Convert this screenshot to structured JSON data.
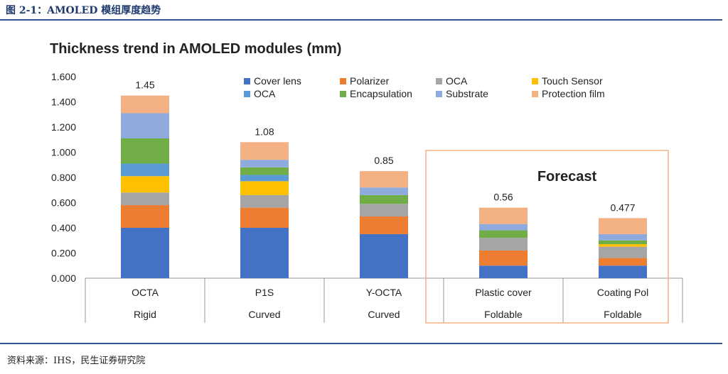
{
  "caption": "图 2-1：AMOLED 模组厚度趋势",
  "source": "资料来源：IHS，民生证券研究院",
  "chart_data": {
    "type": "bar",
    "stacked": true,
    "title": "Thickness trend in AMOLED modules (mm)",
    "categories": [
      "OCTA",
      "P1S",
      "Y-OCTA",
      "Plastic cover",
      "Coating Pol"
    ],
    "subcategories": [
      "Rigid",
      "Curved",
      "Curved",
      "Foldable",
      "Foldable"
    ],
    "totals": [
      1.45,
      1.08,
      0.85,
      0.56,
      0.477
    ],
    "total_labels": [
      "1.45",
      "1.08",
      "0.85",
      "0.56",
      "0.477"
    ],
    "ylim": [
      0,
      1.6
    ],
    "yticks": [
      "0.000",
      "0.200",
      "0.400",
      "0.600",
      "0.800",
      "1.000",
      "1.200",
      "1.400",
      "1.600"
    ],
    "legend_position": "top",
    "annotation": "Forecast",
    "forecast_categories": [
      "Plastic cover",
      "Coating Pol"
    ],
    "series": [
      {
        "name": "Cover lens",
        "color": "#4472c4",
        "values": [
          0.4,
          0.4,
          0.35,
          0.1,
          0.1
        ]
      },
      {
        "name": "Polarizer",
        "color": "#ed7d31",
        "values": [
          0.18,
          0.16,
          0.14,
          0.12,
          0.06
        ]
      },
      {
        "name": "OCA",
        "color": "#a5a5a5",
        "values": [
          0.1,
          0.1,
          0.1,
          0.1,
          0.09
        ]
      },
      {
        "name": "Touch Sensor",
        "color": "#ffc000",
        "values": [
          0.13,
          0.11,
          0.0,
          0.0,
          0.02
        ]
      },
      {
        "name": "OCA",
        "color": "#5b9bd5",
        "values": [
          0.1,
          0.05,
          0.0,
          0.0,
          0.0
        ]
      },
      {
        "name": "Encapsulation",
        "color": "#70ad47",
        "values": [
          0.2,
          0.06,
          0.07,
          0.06,
          0.03
        ]
      },
      {
        "name": "Substrate",
        "color": "#8faadc",
        "values": [
          0.2,
          0.06,
          0.06,
          0.05,
          0.05
        ]
      },
      {
        "name": "Protection film",
        "color": "#f4b183",
        "values": [
          0.14,
          0.14,
          0.13,
          0.13,
          0.127
        ]
      }
    ]
  }
}
